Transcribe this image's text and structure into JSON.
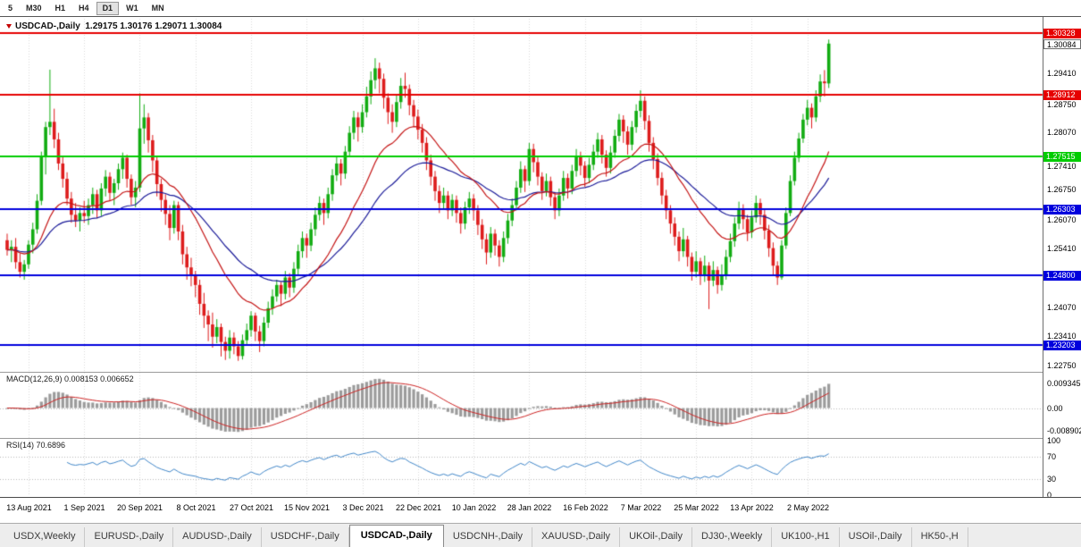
{
  "toolbar": {
    "timeframes": [
      {
        "label": "5",
        "active": false
      },
      {
        "label": "M30",
        "active": false
      },
      {
        "label": "H1",
        "active": false
      },
      {
        "label": "H4",
        "active": false
      },
      {
        "label": "D1",
        "active": true
      },
      {
        "label": "W1",
        "active": false
      },
      {
        "label": "MN",
        "active": false
      }
    ]
  },
  "chart": {
    "title": {
      "symbol_period": "USDCAD-,Daily",
      "open": "1.29175",
      "high": "1.30176",
      "low": "1.29071",
      "close": "1.30084"
    },
    "y_axis_labels": [
      "1.29410",
      "1.28750",
      "1.28070",
      "1.27410",
      "1.26750",
      "1.26070",
      "1.25410",
      "1.24070",
      "1.23410",
      "1.22750"
    ],
    "levels": [
      {
        "value": "1.30328",
        "color": "#e60000"
      },
      {
        "value": "1.28912",
        "color": "#e60000"
      },
      {
        "value": "1.27515",
        "color": "#00cc00"
      },
      {
        "value": "1.26303",
        "color": "#0000dd"
      },
      {
        "value": "1.24800",
        "color": "#0000dd"
      },
      {
        "value": "1.23203",
        "color": "#0000dd"
      }
    ],
    "current_price": "1.30084",
    "x_axis_labels": [
      "13 Aug 2021",
      "1 Sep 2021",
      "20 Sep 2021",
      "8 Oct 2021",
      "27 Oct 2021",
      "15 Nov 2021",
      "3 Dec 2021",
      "22 Dec 2021",
      "10 Jan 2022",
      "28 Jan 2022",
      "16 Feb 2022",
      "7 Mar 2022",
      "25 Mar 2022",
      "13 Apr 2022",
      "2 May 2022"
    ],
    "colors": {
      "up": "#12ac12",
      "down": "#dd1c1c",
      "ma_fast": "#c41414",
      "ma_slow": "#1a1a98",
      "grid": "#d9d9d9",
      "macd_hist": "#9b9b9b",
      "macd_signal": "#cc2222",
      "rsi_line": "#4086c8",
      "dotted_level": "#b9b9b9"
    }
  },
  "macd": {
    "label": "MACD(12,26,9)",
    "value": "0.008153",
    "signal": "0.006652",
    "axis": [
      "0.009345",
      "0.00",
      "-0.008902"
    ],
    "fast": 12,
    "slow": 26,
    "smoothing": 9
  },
  "rsi": {
    "label": "RSI(14)",
    "value": "70.6896",
    "axis": [
      "100",
      "70",
      "30",
      "0"
    ],
    "period": 14,
    "levels": [
      70,
      30
    ]
  },
  "tabs": {
    "items": [
      {
        "label": "USDX,Weekly",
        "active": false
      },
      {
        "label": "EURUSD-,Daily",
        "active": false
      },
      {
        "label": "AUDUSD-,Daily",
        "active": false
      },
      {
        "label": "USDCHF-,Daily",
        "active": false
      },
      {
        "label": "USDCAD-,Daily",
        "active": true
      },
      {
        "label": "USDCNH-,Daily",
        "active": false
      },
      {
        "label": "XAUUSD-,Daily",
        "active": false
      },
      {
        "label": "UKOil-,Daily",
        "active": false
      },
      {
        "label": "DJ30-,Weekly",
        "active": false
      },
      {
        "label": "UK100-,H1",
        "active": false
      },
      {
        "label": "USOil-,Daily",
        "active": false
      },
      {
        "label": "HK50-,H",
        "active": false
      }
    ]
  },
  "chart_data": {
    "type": "candlestick",
    "symbol": "USDCAD-,Daily",
    "price_range": [
      1.2262,
      1.3065
    ],
    "label_start_index": 5,
    "label_step": 13,
    "moving_averages": [
      {
        "name": "fast",
        "period": 20
      },
      {
        "name": "slow",
        "period": 40
      }
    ],
    "candles": [
      [
        1.256,
        1.2575,
        1.2525,
        1.2538
      ],
      [
        1.2538,
        1.256,
        1.251,
        1.2545
      ],
      [
        1.2545,
        1.2565,
        1.2495,
        1.251
      ],
      [
        1.251,
        1.253,
        1.2475,
        1.2488
      ],
      [
        1.2488,
        1.2515,
        1.247,
        1.2505
      ],
      [
        1.2505,
        1.256,
        1.2495,
        1.255
      ],
      [
        1.255,
        1.26,
        1.253,
        1.2585
      ],
      [
        1.2585,
        1.2665,
        1.2575,
        1.265
      ],
      [
        1.265,
        1.2762,
        1.264,
        1.275
      ],
      [
        1.275,
        1.283,
        1.271,
        1.2818
      ],
      [
        1.2818,
        1.2949,
        1.28,
        1.283
      ],
      [
        1.283,
        1.286,
        1.277,
        1.279
      ],
      [
        1.279,
        1.2805,
        1.272,
        1.2735
      ],
      [
        1.2735,
        1.275,
        1.268,
        1.27
      ],
      [
        1.27,
        1.2715,
        1.264,
        1.2655
      ],
      [
        1.2655,
        1.267,
        1.26,
        1.2618
      ],
      [
        1.2618,
        1.2645,
        1.259,
        1.2605
      ],
      [
        1.2605,
        1.2635,
        1.258,
        1.2622
      ],
      [
        1.2622,
        1.265,
        1.26,
        1.2615
      ],
      [
        1.2615,
        1.2655,
        1.2595,
        1.264
      ],
      [
        1.264,
        1.268,
        1.262,
        1.2665
      ],
      [
        1.2665,
        1.2675,
        1.261,
        1.2628
      ],
      [
        1.2628,
        1.269,
        1.2615,
        1.2678
      ],
      [
        1.2678,
        1.272,
        1.266,
        1.2705
      ],
      [
        1.2705,
        1.2715,
        1.265,
        1.2668
      ],
      [
        1.2668,
        1.27,
        1.264,
        1.269
      ],
      [
        1.269,
        1.2735,
        1.2675,
        1.2722
      ],
      [
        1.2722,
        1.276,
        1.27,
        1.2748
      ],
      [
        1.2748,
        1.2755,
        1.268,
        1.27
      ],
      [
        1.27,
        1.271,
        1.264,
        1.2658
      ],
      [
        1.2658,
        1.2695,
        1.2635,
        1.268
      ],
      [
        1.268,
        1.2895,
        1.267,
        1.2815
      ],
      [
        1.2815,
        1.287,
        1.278,
        1.284
      ],
      [
        1.284,
        1.285,
        1.276,
        1.2788
      ],
      [
        1.2788,
        1.28,
        1.2715,
        1.2742
      ],
      [
        1.2742,
        1.275,
        1.266,
        1.2688
      ],
      [
        1.2688,
        1.27,
        1.2625,
        1.2652
      ],
      [
        1.2652,
        1.2665,
        1.2595,
        1.262
      ],
      [
        1.262,
        1.264,
        1.256,
        1.2588
      ],
      [
        1.2588,
        1.265,
        1.2575,
        1.264
      ],
      [
        1.264,
        1.2648,
        1.256,
        1.258
      ],
      [
        1.258,
        1.2595,
        1.2505,
        1.2528
      ],
      [
        1.2528,
        1.2545,
        1.247,
        1.2498
      ],
      [
        1.2498,
        1.252,
        1.2455,
        1.2478
      ],
      [
        1.2478,
        1.249,
        1.243,
        1.2458
      ],
      [
        1.2458,
        1.247,
        1.239,
        1.2415
      ],
      [
        1.2415,
        1.244,
        1.236,
        1.2388
      ],
      [
        1.2388,
        1.24,
        1.233,
        1.2368
      ],
      [
        1.2368,
        1.2395,
        1.2315,
        1.234
      ],
      [
        1.234,
        1.238,
        1.2325,
        1.2362
      ],
      [
        1.2362,
        1.237,
        1.2295,
        1.2328
      ],
      [
        1.2328,
        1.234,
        1.2287,
        1.2308
      ],
      [
        1.2308,
        1.2355,
        1.229,
        1.2338
      ],
      [
        1.2338,
        1.235,
        1.23,
        1.2318
      ],
      [
        1.2318,
        1.233,
        1.2285,
        1.2296
      ],
      [
        1.2296,
        1.2345,
        1.2288,
        1.2332
      ],
      [
        1.2332,
        1.237,
        1.232,
        1.2355
      ],
      [
        1.2355,
        1.2398,
        1.234,
        1.2388
      ],
      [
        1.2388,
        1.2395,
        1.233,
        1.2352
      ],
      [
        1.2352,
        1.2365,
        1.2305,
        1.233
      ],
      [
        1.233,
        1.2385,
        1.2318,
        1.2372
      ],
      [
        1.2372,
        1.242,
        1.236,
        1.2405
      ],
      [
        1.2405,
        1.2448,
        1.239,
        1.2432
      ],
      [
        1.2432,
        1.247,
        1.242,
        1.2458
      ],
      [
        1.2458,
        1.2465,
        1.241,
        1.2438
      ],
      [
        1.2438,
        1.249,
        1.2425,
        1.2475
      ],
      [
        1.2475,
        1.2485,
        1.243,
        1.2452
      ],
      [
        1.2452,
        1.251,
        1.244,
        1.2495
      ],
      [
        1.2495,
        1.255,
        1.2482,
        1.2535
      ],
      [
        1.2535,
        1.258,
        1.252,
        1.2565
      ],
      [
        1.2565,
        1.2575,
        1.252,
        1.2548
      ],
      [
        1.2548,
        1.26,
        1.2535,
        1.2585
      ],
      [
        1.2585,
        1.2635,
        1.257,
        1.2618
      ],
      [
        1.2618,
        1.266,
        1.2605,
        1.2645
      ],
      [
        1.2645,
        1.2655,
        1.2595,
        1.2622
      ],
      [
        1.2622,
        1.268,
        1.261,
        1.2665
      ],
      [
        1.2665,
        1.2722,
        1.265,
        1.2708
      ],
      [
        1.2708,
        1.275,
        1.2695,
        1.2735
      ],
      [
        1.2735,
        1.2745,
        1.2685,
        1.2712
      ],
      [
        1.2712,
        1.2775,
        1.27,
        1.2762
      ],
      [
        1.2762,
        1.282,
        1.275,
        1.2805
      ],
      [
        1.2805,
        1.2855,
        1.279,
        1.284
      ],
      [
        1.284,
        1.2852,
        1.2785,
        1.2818
      ],
      [
        1.2818,
        1.287,
        1.2805,
        1.2852
      ],
      [
        1.2852,
        1.291,
        1.284,
        1.2888
      ],
      [
        1.2888,
        1.2945,
        1.287,
        1.2925
      ],
      [
        1.2925,
        1.2975,
        1.2905,
        1.2952
      ],
      [
        1.2952,
        1.2965,
        1.2895,
        1.2928
      ],
      [
        1.2928,
        1.294,
        1.286,
        1.2885
      ],
      [
        1.2885,
        1.2895,
        1.2825,
        1.2852
      ],
      [
        1.2852,
        1.287,
        1.2805,
        1.283
      ],
      [
        1.283,
        1.2892,
        1.2818,
        1.2875
      ],
      [
        1.2875,
        1.293,
        1.286,
        1.2912
      ],
      [
        1.2912,
        1.2942,
        1.2885,
        1.2905
      ],
      [
        1.2905,
        1.2915,
        1.2845,
        1.2868
      ],
      [
        1.2868,
        1.288,
        1.282,
        1.2842
      ],
      [
        1.2842,
        1.2858,
        1.279,
        1.2812
      ],
      [
        1.2812,
        1.2825,
        1.276,
        1.2782
      ],
      [
        1.2782,
        1.2795,
        1.272,
        1.2742
      ],
      [
        1.2742,
        1.2755,
        1.2685,
        1.2705
      ],
      [
        1.2705,
        1.2718,
        1.265,
        1.2672
      ],
      [
        1.2672,
        1.2685,
        1.2622,
        1.2645
      ],
      [
        1.2645,
        1.268,
        1.263,
        1.2662
      ],
      [
        1.2662,
        1.2672,
        1.2608,
        1.2628
      ],
      [
        1.2628,
        1.2665,
        1.2615,
        1.2652
      ],
      [
        1.2652,
        1.2662,
        1.26,
        1.2622
      ],
      [
        1.2622,
        1.2635,
        1.2575,
        1.2598
      ],
      [
        1.2598,
        1.2648,
        1.2585,
        1.2635
      ],
      [
        1.2635,
        1.267,
        1.262,
        1.2655
      ],
      [
        1.2655,
        1.2665,
        1.2605,
        1.2628
      ],
      [
        1.2628,
        1.264,
        1.2572,
        1.2595
      ],
      [
        1.2595,
        1.2608,
        1.254,
        1.2562
      ],
      [
        1.2562,
        1.2575,
        1.2505,
        1.2532
      ],
      [
        1.2532,
        1.259,
        1.252,
        1.2575
      ],
      [
        1.2575,
        1.2585,
        1.2525,
        1.2548
      ],
      [
        1.2548,
        1.256,
        1.25,
        1.2522
      ],
      [
        1.2522,
        1.258,
        1.251,
        1.2565
      ],
      [
        1.2565,
        1.262,
        1.2552,
        1.2605
      ],
      [
        1.2605,
        1.2655,
        1.2592,
        1.264
      ],
      [
        1.264,
        1.2695,
        1.2628,
        1.268
      ],
      [
        1.268,
        1.274,
        1.2668,
        1.2722
      ],
      [
        1.2722,
        1.273,
        1.267,
        1.2695
      ],
      [
        1.2695,
        1.2782,
        1.2685,
        1.2768
      ],
      [
        1.2768,
        1.278,
        1.2715,
        1.2738
      ],
      [
        1.2738,
        1.275,
        1.2685,
        1.2705
      ],
      [
        1.2705,
        1.2715,
        1.2652,
        1.2672
      ],
      [
        1.2672,
        1.2712,
        1.266,
        1.2695
      ],
      [
        1.2695,
        1.2705,
        1.2638,
        1.2658
      ],
      [
        1.2658,
        1.267,
        1.2608,
        1.2628
      ],
      [
        1.2628,
        1.2678,
        1.2615,
        1.2662
      ],
      [
        1.2662,
        1.2718,
        1.265,
        1.2702
      ],
      [
        1.2702,
        1.2712,
        1.2655,
        1.2678
      ],
      [
        1.2678,
        1.2732,
        1.2665,
        1.2718
      ],
      [
        1.2718,
        1.2768,
        1.2705,
        1.2752
      ],
      [
        1.2752,
        1.2762,
        1.2708,
        1.273
      ],
      [
        1.273,
        1.274,
        1.2682,
        1.2702
      ],
      [
        1.2702,
        1.2748,
        1.269,
        1.2732
      ],
      [
        1.2732,
        1.2778,
        1.272,
        1.2762
      ],
      [
        1.2762,
        1.2805,
        1.2748,
        1.279
      ],
      [
        1.279,
        1.28,
        1.2735,
        1.2755
      ],
      [
        1.2755,
        1.2765,
        1.2705,
        1.2725
      ],
      [
        1.2725,
        1.2775,
        1.2712,
        1.276
      ],
      [
        1.276,
        1.2812,
        1.2748,
        1.2798
      ],
      [
        1.2798,
        1.2848,
        1.2785,
        1.2835
      ],
      [
        1.2835,
        1.2845,
        1.2782,
        1.2808
      ],
      [
        1.2808,
        1.282,
        1.2755,
        1.2778
      ],
      [
        1.2778,
        1.2832,
        1.2765,
        1.2818
      ],
      [
        1.2818,
        1.287,
        1.2805,
        1.2855
      ],
      [
        1.2855,
        1.2902,
        1.284,
        1.2878
      ],
      [
        1.2878,
        1.2888,
        1.2812,
        1.2832
      ],
      [
        1.2832,
        1.2845,
        1.2762,
        1.2782
      ],
      [
        1.2782,
        1.2795,
        1.2722,
        1.2745
      ],
      [
        1.2745,
        1.2758,
        1.2685,
        1.2702
      ],
      [
        1.2702,
        1.2715,
        1.2642,
        1.2662
      ],
      [
        1.2662,
        1.2675,
        1.2608,
        1.2628
      ],
      [
        1.2628,
        1.264,
        1.2575,
        1.2598
      ],
      [
        1.2598,
        1.2612,
        1.2548,
        1.2568
      ],
      [
        1.2568,
        1.258,
        1.2512,
        1.2535
      ],
      [
        1.2535,
        1.2588,
        1.2522,
        1.2562
      ],
      [
        1.2562,
        1.257,
        1.25,
        1.2522
      ],
      [
        1.2522,
        1.2532,
        1.2468,
        1.2488
      ],
      [
        1.2488,
        1.2535,
        1.2475,
        1.2512
      ],
      [
        1.2512,
        1.252,
        1.2458,
        1.2478
      ],
      [
        1.2478,
        1.2525,
        1.2465,
        1.2502
      ],
      [
        1.2502,
        1.251,
        1.2403,
        1.2468
      ],
      [
        1.2468,
        1.2512,
        1.2455,
        1.2492
      ],
      [
        1.2492,
        1.25,
        1.2438,
        1.2458
      ],
      [
        1.2458,
        1.2505,
        1.2445,
        1.2482
      ],
      [
        1.2482,
        1.2538,
        1.247,
        1.2522
      ],
      [
        1.2522,
        1.2575,
        1.251,
        1.2558
      ],
      [
        1.2558,
        1.2612,
        1.2545,
        1.2598
      ],
      [
        1.2598,
        1.2648,
        1.2585,
        1.2632
      ],
      [
        1.2632,
        1.2642,
        1.2585,
        1.2608
      ],
      [
        1.2608,
        1.2618,
        1.2558,
        1.2578
      ],
      [
        1.2578,
        1.2628,
        1.2565,
        1.2612
      ],
      [
        1.2612,
        1.2662,
        1.26,
        1.2645
      ],
      [
        1.2645,
        1.2655,
        1.2595,
        1.2618
      ],
      [
        1.2618,
        1.263,
        1.2562,
        1.2582
      ],
      [
        1.2582,
        1.2595,
        1.2522,
        1.2542
      ],
      [
        1.2542,
        1.2555,
        1.2482,
        1.2502
      ],
      [
        1.2502,
        1.2512,
        1.2458,
        1.2475
      ],
      [
        1.2475,
        1.256,
        1.247,
        1.2548
      ],
      [
        1.2548,
        1.2635,
        1.254,
        1.2622
      ],
      [
        1.2622,
        1.2708,
        1.2615,
        1.2695
      ],
      [
        1.2695,
        1.2762,
        1.2685,
        1.2748
      ],
      [
        1.2748,
        1.2805,
        1.2738,
        1.2792
      ],
      [
        1.2792,
        1.2848,
        1.2782,
        1.2835
      ],
      [
        1.2835,
        1.288,
        1.2822,
        1.2862
      ],
      [
        1.2862,
        1.2872,
        1.2815,
        1.284
      ],
      [
        1.284,
        1.2902,
        1.283,
        1.2888
      ],
      [
        1.2888,
        1.2938,
        1.2875,
        1.2922
      ],
      [
        1.2922,
        1.2948,
        1.2888,
        1.2918
      ],
      [
        1.29175,
        1.30176,
        1.29071,
        1.30084
      ]
    ]
  }
}
